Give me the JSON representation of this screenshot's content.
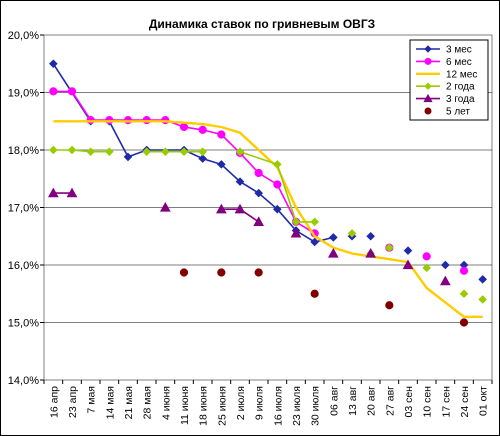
{
  "chart_data": {
    "type": "line",
    "title": "Динамика ставок по гривневым ОВГЗ",
    "xlabel": "",
    "ylabel": "",
    "ylim": [
      14.0,
      20.0
    ],
    "y_ticks": [
      "14,0%",
      "15,0%",
      "16,0%",
      "17,0%",
      "18,0%",
      "19,0%",
      "20,0%"
    ],
    "y_tick_values": [
      14,
      15,
      16,
      17,
      18,
      19,
      20
    ],
    "grid": "horizontal",
    "legend_position": "top-right",
    "categories": [
      "16 апр",
      "23 апр",
      "7 мая",
      "14 мая",
      "21 мая",
      "28 мая",
      "4 июня",
      "11 июня",
      "18 июня",
      "25 июня",
      "2 июля",
      "9 июля",
      "16 июля",
      "23 июля",
      "30 июля",
      "06 авг",
      "13 авг",
      "20 авг",
      "27 авг",
      "03 сен",
      "10 сен",
      "17 сен",
      "24 сен",
      "01 окт"
    ],
    "series": [
      {
        "name": "3 мес",
        "color": "#1f2aa8",
        "marker": "diamond",
        "line": true,
        "points": [
          [
            0,
            19.5
          ],
          [
            2,
            18.5
          ],
          [
            3,
            18.5
          ],
          [
            4,
            17.88
          ],
          [
            5,
            18.0
          ],
          [
            7,
            18.0
          ],
          [
            8,
            17.85
          ],
          [
            9,
            17.75
          ],
          [
            10,
            17.45
          ],
          [
            11,
            17.25
          ],
          [
            12,
            16.97
          ],
          [
            13,
            16.6
          ],
          [
            14,
            16.4
          ],
          [
            15,
            16.48
          ]
        ],
        "extra_points": [
          [
            16,
            16.5
          ],
          [
            17,
            16.5
          ],
          [
            18,
            16.3
          ],
          [
            19,
            16.25
          ],
          [
            21,
            16.0
          ],
          [
            22,
            16.0
          ],
          [
            23,
            15.75
          ]
        ]
      },
      {
        "name": "6 мес",
        "color": "#ff00ff",
        "marker": "circle",
        "line": true,
        "points": [
          [
            0,
            19.02
          ],
          [
            1,
            19.02
          ],
          [
            2,
            18.52
          ],
          [
            3,
            18.52
          ],
          [
            4,
            18.52
          ],
          [
            5,
            18.52
          ],
          [
            6,
            18.52
          ],
          [
            7,
            18.4
          ],
          [
            8,
            18.35
          ],
          [
            9,
            18.27
          ],
          [
            10,
            17.95
          ],
          [
            11,
            17.6
          ],
          [
            12,
            17.4
          ],
          [
            13,
            16.75
          ],
          [
            14,
            16.55
          ]
        ],
        "extra_points": [
          [
            18,
            16.3
          ],
          [
            20,
            16.15
          ],
          [
            22,
            15.9
          ]
        ]
      },
      {
        "name": "12 мес",
        "color": "#ffcc00",
        "marker": "none",
        "line": true,
        "points": [
          [
            0,
            18.5
          ],
          [
            6,
            18.5
          ],
          [
            8,
            18.45
          ],
          [
            9,
            18.4
          ],
          [
            10,
            18.3
          ],
          [
            11,
            18.0
          ],
          [
            12,
            17.7
          ],
          [
            13,
            17.0
          ],
          [
            14,
            16.5
          ],
          [
            15,
            16.3
          ],
          [
            16,
            16.2
          ],
          [
            17,
            16.15
          ],
          [
            18,
            16.1
          ],
          [
            19,
            16.05
          ],
          [
            20,
            15.6
          ],
          [
            21,
            15.35
          ],
          [
            22,
            15.1
          ],
          [
            23,
            15.1
          ]
        ]
      },
      {
        "name": "2 года",
        "color": "#99cc00",
        "marker": "diamond",
        "line": true,
        "points": [
          [
            0,
            18.0
          ],
          [
            1,
            18.0
          ],
          [
            2,
            17.97
          ],
          [
            3,
            17.97
          ]
        ],
        "points2": [
          [
            5,
            17.97
          ],
          [
            6,
            17.97
          ],
          [
            7,
            17.97
          ],
          [
            8,
            17.97
          ]
        ],
        "points3": [
          [
            10,
            17.97
          ],
          [
            12,
            17.75
          ],
          [
            13,
            16.75
          ],
          [
            14,
            16.75
          ]
        ],
        "extra_points": [
          [
            16,
            16.55
          ],
          [
            17,
            16.2
          ],
          [
            18,
            16.3
          ],
          [
            20,
            15.95
          ],
          [
            22,
            15.5
          ],
          [
            23,
            15.4
          ]
        ]
      },
      {
        "name": "3 года",
        "color": "#800080",
        "marker": "triangle",
        "line": true,
        "points": [
          [
            0,
            17.25
          ],
          [
            1,
            17.25
          ]
        ],
        "points2": [
          [
            9,
            16.97
          ],
          [
            10,
            16.97
          ],
          [
            11,
            16.75
          ]
        ],
        "extra_points": [
          [
            6,
            17.0
          ],
          [
            13,
            16.55
          ],
          [
            15,
            16.2
          ],
          [
            17,
            16.2
          ],
          [
            19,
            16.0
          ],
          [
            21,
            15.72
          ]
        ]
      },
      {
        "name": "5 лет",
        "color": "#800000",
        "marker": "circle",
        "line": false,
        "points": [
          [
            7,
            15.87
          ],
          [
            9,
            15.87
          ],
          [
            11,
            15.87
          ],
          [
            14,
            15.5
          ],
          [
            18,
            15.3
          ],
          [
            22,
            15.0
          ]
        ]
      }
    ]
  }
}
